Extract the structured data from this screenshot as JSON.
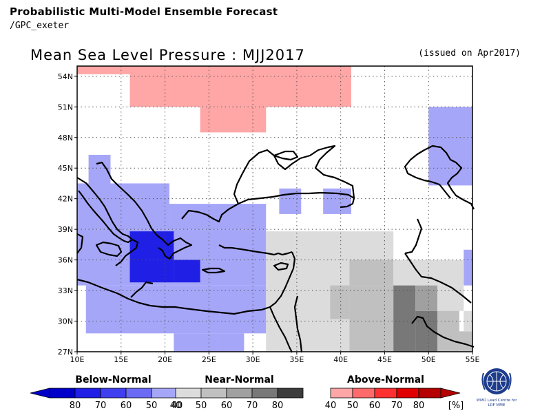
{
  "header": {
    "title": "Probabilistic Multi-Model Ensemble Forecast",
    "source": "/GPC_exeter"
  },
  "map": {
    "title": "Mean Sea Level Pressure : MJJ2017",
    "issued": "(issued on Apr2017)",
    "lat_range": [
      27,
      55
    ],
    "lon_range": [
      10,
      55
    ],
    "lat_ticks": [
      "54N",
      "51N",
      "48N",
      "45N",
      "42N",
      "39N",
      "36N",
      "33N",
      "30N",
      "27N"
    ],
    "lon_ticks": [
      "10E",
      "15E",
      "20E",
      "25E",
      "30E",
      "35E",
      "40E",
      "45E",
      "50E",
      "55E"
    ]
  },
  "legend": {
    "below": {
      "label": "Below-Normal",
      "ticks": [
        "80",
        "70",
        "60",
        "50",
        "40"
      ],
      "colors": [
        "#0000c8",
        "#1f1fe6",
        "#3f3ff0",
        "#6a6af5",
        "#a6a6f9"
      ]
    },
    "near": {
      "label": "Near-Normal",
      "ticks": [
        "40",
        "50",
        "60",
        "70",
        "80"
      ],
      "colors": [
        "#dcdcdc",
        "#c0c0c0",
        "#a0a0a0",
        "#787878",
        "#3c3c3c"
      ]
    },
    "above": {
      "label": "Above-Normal",
      "ticks": [
        "40",
        "50",
        "60",
        "70",
        "80"
      ],
      "colors": [
        "#ffa6a6",
        "#ff6a6a",
        "#ff3030",
        "#e00000",
        "#b40000"
      ]
    },
    "unit": "[%]"
  },
  "logo": {
    "line1": "WMO Lead Centre for",
    "line2": "LRF MME"
  }
}
